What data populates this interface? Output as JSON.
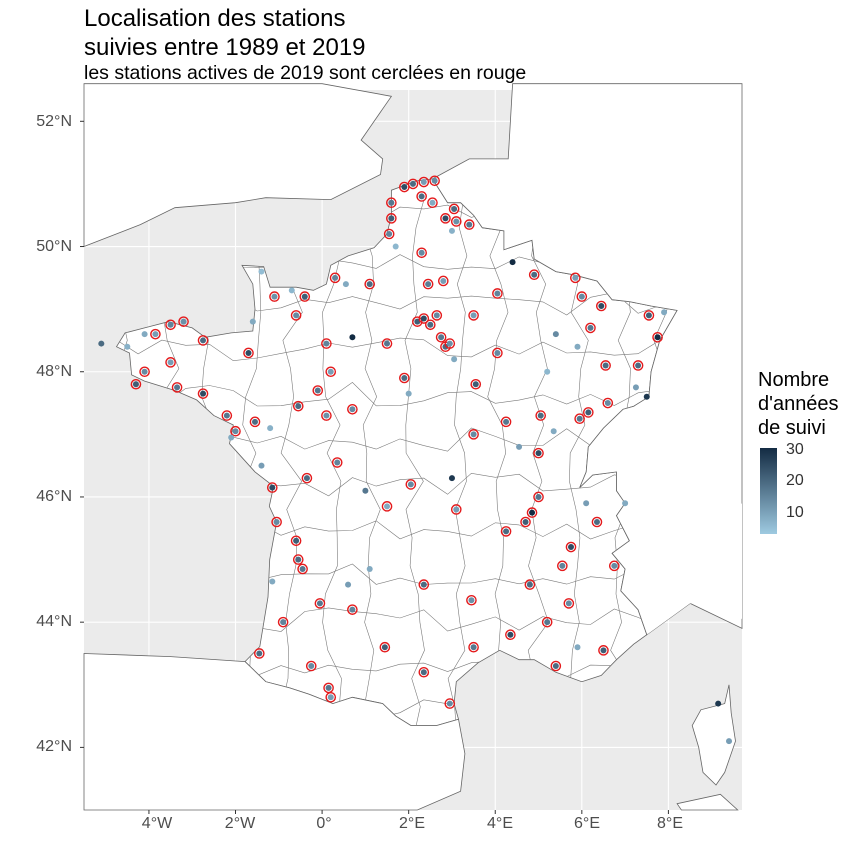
{
  "title": "Localisation des stations\nsuivies entre 1989 et 2019",
  "subtitle": "les stations actives de 2019 sont cerclées en rouge",
  "y_axis_ticks": [
    "52°N",
    "50°N",
    "48°N",
    "46°N",
    "44°N",
    "42°N"
  ],
  "x_axis_ticks": [
    "4°W",
    "2°W",
    "0°",
    "2°E",
    "4°E",
    "6°E",
    "8°E"
  ],
  "legend": {
    "title": "Nombre\nd'années\nde suivi",
    "labels": [
      "30",
      "20",
      "10"
    ],
    "color_low": "#9ecae1",
    "color_high": "#132b43",
    "active_ring_color": "#e41a1c"
  },
  "colors": {
    "land": "#ffffff",
    "background": "#ebebeb",
    "border": "#666666",
    "grid": "#ffffff"
  },
  "chart_data": {
    "type": "scatter",
    "title": "Localisation des stations suivies entre 1989 et 2019",
    "subtitle": "les stations actives de 2019 sont cerclées en rouge",
    "xlim": [
      -5.5,
      9.7
    ],
    "ylim": [
      41.0,
      52.5
    ],
    "x_ticks": [
      -4,
      -2,
      0,
      2,
      4,
      6,
      8
    ],
    "y_ticks": [
      42,
      44,
      46,
      48,
      50,
      52
    ],
    "color_scale": {
      "min": 5,
      "max": 30,
      "breaks": [
        10,
        20,
        30
      ]
    },
    "stations": [
      {
        "lon": 1.6,
        "lat": 50.45,
        "years": 22,
        "active": true
      },
      {
        "lon": 1.6,
        "lat": 50.7,
        "years": 18,
        "active": true
      },
      {
        "lon": 1.9,
        "lat": 50.95,
        "years": 25,
        "active": true
      },
      {
        "lon": 2.1,
        "lat": 51.0,
        "years": 20,
        "active": true
      },
      {
        "lon": 2.35,
        "lat": 51.03,
        "years": 12,
        "active": true
      },
      {
        "lon": 2.6,
        "lat": 51.05,
        "years": 15,
        "active": true
      },
      {
        "lon": 2.3,
        "lat": 50.8,
        "years": 20,
        "active": true
      },
      {
        "lon": 2.55,
        "lat": 50.7,
        "years": 10,
        "active": true
      },
      {
        "lon": 3.05,
        "lat": 50.6,
        "years": 20,
        "active": true
      },
      {
        "lon": 2.85,
        "lat": 50.45,
        "years": 25,
        "active": true
      },
      {
        "lon": 3.1,
        "lat": 50.4,
        "years": 14,
        "active": true
      },
      {
        "lon": 3.4,
        "lat": 50.35,
        "years": 18,
        "active": true
      },
      {
        "lon": 1.7,
        "lat": 50.0,
        "years": 8,
        "active": false
      },
      {
        "lon": 1.55,
        "lat": 50.2,
        "years": 16,
        "active": true
      },
      {
        "lon": 2.3,
        "lat": 49.9,
        "years": 15,
        "active": true
      },
      {
        "lon": 3.0,
        "lat": 50.25,
        "years": 9,
        "active": false
      },
      {
        "lon": 4.4,
        "lat": 49.75,
        "years": 30,
        "active": false
      },
      {
        "lon": 4.9,
        "lat": 49.55,
        "years": 20,
        "active": true
      },
      {
        "lon": 2.45,
        "lat": 49.4,
        "years": 17,
        "active": true
      },
      {
        "lon": 2.8,
        "lat": 49.45,
        "years": 12,
        "active": true
      },
      {
        "lon": 1.1,
        "lat": 49.4,
        "years": 20,
        "active": true
      },
      {
        "lon": 0.3,
        "lat": 49.5,
        "years": 16,
        "active": true
      },
      {
        "lon": 0.55,
        "lat": 49.4,
        "years": 10,
        "active": false
      },
      {
        "lon": -0.7,
        "lat": 49.3,
        "years": 8,
        "active": false
      },
      {
        "lon": -1.1,
        "lat": 49.2,
        "years": 14,
        "active": true
      },
      {
        "lon": -1.4,
        "lat": 49.6,
        "years": 7,
        "active": false
      },
      {
        "lon": -0.4,
        "lat": 49.2,
        "years": 22,
        "active": true
      },
      {
        "lon": -0.6,
        "lat": 48.9,
        "years": 15,
        "active": true
      },
      {
        "lon": -1.6,
        "lat": 48.8,
        "years": 10,
        "active": false
      },
      {
        "lon": -1.7,
        "lat": 48.3,
        "years": 25,
        "active": true
      },
      {
        "lon": -2.75,
        "lat": 48.5,
        "years": 20,
        "active": true
      },
      {
        "lon": -3.2,
        "lat": 48.8,
        "years": 14,
        "active": true
      },
      {
        "lon": -3.5,
        "lat": 48.75,
        "years": 16,
        "active": true
      },
      {
        "lon": -3.85,
        "lat": 48.6,
        "years": 12,
        "active": true
      },
      {
        "lon": -4.1,
        "lat": 48.6,
        "years": 10,
        "active": false
      },
      {
        "lon": -4.5,
        "lat": 48.4,
        "years": 9,
        "active": false
      },
      {
        "lon": -5.1,
        "lat": 48.45,
        "years": 20,
        "active": false
      },
      {
        "lon": -4.1,
        "lat": 48.0,
        "years": 15,
        "active": true
      },
      {
        "lon": -4.3,
        "lat": 47.8,
        "years": 22,
        "active": true
      },
      {
        "lon": -3.35,
        "lat": 47.75,
        "years": 18,
        "active": true
      },
      {
        "lon": -3.5,
        "lat": 48.15,
        "years": 12,
        "active": true
      },
      {
        "lon": -2.75,
        "lat": 47.65,
        "years": 25,
        "active": true
      },
      {
        "lon": -2.2,
        "lat": 47.3,
        "years": 18,
        "active": true
      },
      {
        "lon": -1.55,
        "lat": 47.2,
        "years": 20,
        "active": true
      },
      {
        "lon": -2.0,
        "lat": 47.05,
        "years": 15,
        "active": true
      },
      {
        "lon": -2.1,
        "lat": 46.95,
        "years": 10,
        "active": false
      },
      {
        "lon": -1.2,
        "lat": 47.1,
        "years": 9,
        "active": false
      },
      {
        "lon": -0.55,
        "lat": 47.45,
        "years": 20,
        "active": true
      },
      {
        "lon": 0.1,
        "lat": 47.3,
        "years": 14,
        "active": true
      },
      {
        "lon": -0.1,
        "lat": 47.7,
        "years": 18,
        "active": true
      },
      {
        "lon": 0.2,
        "lat": 48.0,
        "years": 12,
        "active": true
      },
      {
        "lon": 0.7,
        "lat": 48.55,
        "years": 30,
        "active": false
      },
      {
        "lon": 0.1,
        "lat": 48.45,
        "years": 16,
        "active": true
      },
      {
        "lon": 1.5,
        "lat": 48.45,
        "years": 18,
        "active": true
      },
      {
        "lon": 1.9,
        "lat": 47.9,
        "years": 20,
        "active": true
      },
      {
        "lon": 0.7,
        "lat": 47.4,
        "years": 15,
        "active": true
      },
      {
        "lon": 2.0,
        "lat": 47.65,
        "years": 10,
        "active": false
      },
      {
        "lon": 2.2,
        "lat": 48.8,
        "years": 22,
        "active": true
      },
      {
        "lon": 2.35,
        "lat": 48.85,
        "years": 25,
        "active": true
      },
      {
        "lon": 2.5,
        "lat": 48.75,
        "years": 20,
        "active": true
      },
      {
        "lon": 2.65,
        "lat": 48.9,
        "years": 15,
        "active": true
      },
      {
        "lon": 2.75,
        "lat": 48.55,
        "years": 18,
        "active": true
      },
      {
        "lon": 2.85,
        "lat": 48.4,
        "years": 20,
        "active": true
      },
      {
        "lon": 2.95,
        "lat": 48.45,
        "years": 14,
        "active": true
      },
      {
        "lon": 3.05,
        "lat": 48.2,
        "years": 10,
        "active": false
      },
      {
        "lon": 3.5,
        "lat": 48.9,
        "years": 12,
        "active": true
      },
      {
        "lon": 4.05,
        "lat": 49.25,
        "years": 16,
        "active": true
      },
      {
        "lon": 4.05,
        "lat": 48.3,
        "years": 15,
        "active": true
      },
      {
        "lon": 3.55,
        "lat": 47.8,
        "years": 22,
        "active": true
      },
      {
        "lon": 3.5,
        "lat": 47.0,
        "years": 15,
        "active": true
      },
      {
        "lon": 4.25,
        "lat": 47.2,
        "years": 18,
        "active": true
      },
      {
        "lon": 5.05,
        "lat": 47.3,
        "years": 20,
        "active": true
      },
      {
        "lon": 5.35,
        "lat": 47.05,
        "years": 10,
        "active": false
      },
      {
        "lon": 4.55,
        "lat": 46.8,
        "years": 12,
        "active": false
      },
      {
        "lon": 5.0,
        "lat": 46.7,
        "years": 25,
        "active": true
      },
      {
        "lon": 5.95,
        "lat": 47.25,
        "years": 18,
        "active": true
      },
      {
        "lon": 6.15,
        "lat": 47.35,
        "years": 22,
        "active": true
      },
      {
        "lon": 6.6,
        "lat": 47.5,
        "years": 15,
        "active": true
      },
      {
        "lon": 7.25,
        "lat": 47.75,
        "years": 12,
        "active": false
      },
      {
        "lon": 7.5,
        "lat": 47.6,
        "years": 28,
        "active": false
      },
      {
        "lon": 7.3,
        "lat": 48.1,
        "years": 20,
        "active": true
      },
      {
        "lon": 7.75,
        "lat": 48.55,
        "years": 30,
        "active": true
      },
      {
        "lon": 7.55,
        "lat": 48.9,
        "years": 22,
        "active": true
      },
      {
        "lon": 7.9,
        "lat": 48.95,
        "years": 10,
        "active": false
      },
      {
        "lon": 6.55,
        "lat": 48.1,
        "years": 20,
        "active": true
      },
      {
        "lon": 6.2,
        "lat": 48.7,
        "years": 18,
        "active": true
      },
      {
        "lon": 6.45,
        "lat": 49.05,
        "years": 25,
        "active": true
      },
      {
        "lon": 6.0,
        "lat": 49.2,
        "years": 15,
        "active": true
      },
      {
        "lon": 5.85,
        "lat": 49.5,
        "years": 12,
        "active": true
      },
      {
        "lon": 5.4,
        "lat": 48.6,
        "years": 15,
        "active": false
      },
      {
        "lon": 5.9,
        "lat": 48.4,
        "years": 10,
        "active": false
      },
      {
        "lon": 5.2,
        "lat": 48.0,
        "years": 8,
        "active": false
      },
      {
        "lon": 5.0,
        "lat": 46.0,
        "years": 18,
        "active": true
      },
      {
        "lon": 4.85,
        "lat": 45.75,
        "years": 30,
        "active": true
      },
      {
        "lon": 4.7,
        "lat": 45.6,
        "years": 22,
        "active": true
      },
      {
        "lon": 4.25,
        "lat": 45.45,
        "years": 20,
        "active": true
      },
      {
        "lon": 3.1,
        "lat": 45.8,
        "years": 12,
        "active": true
      },
      {
        "lon": 3.0,
        "lat": 46.3,
        "years": 28,
        "active": false
      },
      {
        "lon": 2.05,
        "lat": 46.2,
        "years": 15,
        "active": true
      },
      {
        "lon": 1.5,
        "lat": 45.85,
        "years": 10,
        "active": true
      },
      {
        "lon": 1.0,
        "lat": 46.1,
        "years": 18,
        "active": false
      },
      {
        "lon": 0.35,
        "lat": 46.55,
        "years": 16,
        "active": true
      },
      {
        "lon": -0.35,
        "lat": 46.3,
        "years": 20,
        "active": true
      },
      {
        "lon": -1.15,
        "lat": 46.15,
        "years": 25,
        "active": true
      },
      {
        "lon": -1.4,
        "lat": 46.5,
        "years": 12,
        "active": false
      },
      {
        "lon": -1.05,
        "lat": 45.6,
        "years": 15,
        "active": true
      },
      {
        "lon": -0.6,
        "lat": 45.3,
        "years": 22,
        "active": true
      },
      {
        "lon": -0.55,
        "lat": 45.0,
        "years": 20,
        "active": true
      },
      {
        "lon": -0.45,
        "lat": 44.85,
        "years": 18,
        "active": true
      },
      {
        "lon": -1.15,
        "lat": 44.65,
        "years": 10,
        "active": false
      },
      {
        "lon": -0.9,
        "lat": 44.0,
        "years": 16,
        "active": true
      },
      {
        "lon": -1.45,
        "lat": 43.5,
        "years": 20,
        "active": true
      },
      {
        "lon": -0.25,
        "lat": 43.3,
        "years": 15,
        "active": true
      },
      {
        "lon": 0.15,
        "lat": 42.95,
        "years": 18,
        "active": true
      },
      {
        "lon": 0.2,
        "lat": 42.8,
        "years": 12,
        "active": true
      },
      {
        "lon": 1.45,
        "lat": 43.6,
        "years": 22,
        "active": true
      },
      {
        "lon": 2.35,
        "lat": 43.2,
        "years": 20,
        "active": true
      },
      {
        "lon": 2.95,
        "lat": 42.7,
        "years": 15,
        "active": true
      },
      {
        "lon": 3.5,
        "lat": 43.6,
        "years": 18,
        "active": true
      },
      {
        "lon": 4.35,
        "lat": 43.8,
        "years": 25,
        "active": true
      },
      {
        "lon": 5.4,
        "lat": 43.3,
        "years": 20,
        "active": true
      },
      {
        "lon": 5.9,
        "lat": 43.6,
        "years": 10,
        "active": false
      },
      {
        "lon": 6.5,
        "lat": 43.55,
        "years": 22,
        "active": true
      },
      {
        "lon": 5.7,
        "lat": 44.3,
        "years": 15,
        "active": true
      },
      {
        "lon": 5.2,
        "lat": 44.0,
        "years": 18,
        "active": true
      },
      {
        "lon": 4.8,
        "lat": 44.6,
        "years": 20,
        "active": true
      },
      {
        "lon": 5.55,
        "lat": 44.9,
        "years": 16,
        "active": true
      },
      {
        "lon": 5.75,
        "lat": 45.2,
        "years": 25,
        "active": true
      },
      {
        "lon": 6.35,
        "lat": 45.6,
        "years": 20,
        "active": true
      },
      {
        "lon": 6.1,
        "lat": 45.9,
        "years": 12,
        "active": false
      },
      {
        "lon": 7.0,
        "lat": 45.9,
        "years": 10,
        "active": false
      },
      {
        "lon": 6.75,
        "lat": 44.9,
        "years": 15,
        "active": true
      },
      {
        "lon": 9.15,
        "lat": 42.7,
        "years": 28,
        "active": false
      },
      {
        "lon": 9.4,
        "lat": 42.1,
        "years": 12,
        "active": false
      },
      {
        "lon": 0.7,
        "lat": 44.2,
        "years": 16,
        "active": true
      },
      {
        "lon": 1.1,
        "lat": 44.85,
        "years": 10,
        "active": false
      },
      {
        "lon": 2.35,
        "lat": 44.6,
        "years": 20,
        "active": true
      },
      {
        "lon": 3.45,
        "lat": 44.35,
        "years": 14,
        "active": true
      },
      {
        "lon": 0.6,
        "lat": 44.6,
        "years": 12,
        "active": false
      },
      {
        "lon": -0.05,
        "lat": 44.3,
        "years": 18,
        "active": true
      }
    ]
  }
}
